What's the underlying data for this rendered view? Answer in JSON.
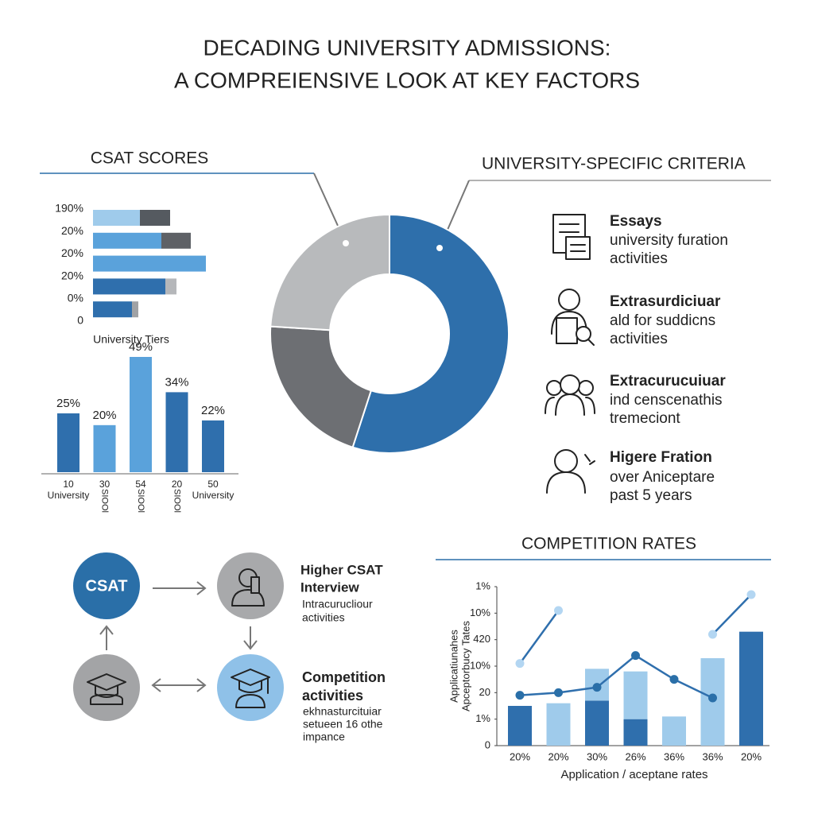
{
  "title": [
    "DECADING UNIVERSITY ADMISSIONS:",
    "A COMPREIENSIVE LOOK AT KEY FACTORS"
  ],
  "chart_data": [
    {
      "type": "hbar_stacked",
      "title": "CSAT SCORES",
      "categories": [
        "190%",
        "20%",
        "20%",
        "20%",
        "0%",
        "0"
      ],
      "xlabel": "University Tiers",
      "xlim": [
        0,
        150
      ],
      "series": [
        {
          "colors": [
            "#9fcbeb",
            "#5aa2db",
            "#5aa2db",
            "#2f6fad",
            "#2f6fad",
            null
          ],
          "values": [
            59,
            86,
            142,
            91,
            49,
            null
          ]
        },
        {
          "colors": [
            "#555a60",
            "#5e6166",
            "#5aa2db",
            "#b5b7ba",
            "#a0a2a5",
            null
          ],
          "values": [
            38,
            37,
            0,
            14,
            8,
            null
          ]
        }
      ]
    },
    {
      "type": "bar",
      "categories": [
        "10",
        "30",
        "54",
        "20",
        "50"
      ],
      "sublabels": [
        "University",
        null,
        null,
        null,
        "University"
      ],
      "rotated_labels": [
        null,
        "SIOOl",
        "SIOOl",
        "SIOOl",
        null
      ],
      "values": [
        25,
        20,
        49,
        34,
        22
      ],
      "value_labels": [
        "25%",
        "20%",
        "49%",
        "34%",
        "22%"
      ],
      "colors": [
        "#2f6fad",
        "#5aa2db",
        "#5aa2db",
        "#2f6fad",
        "#2f6fad"
      ]
    },
    {
      "type": "donut",
      "values": [
        55,
        21,
        24
      ],
      "colors": [
        "#2e6fab",
        "#6d6f73",
        "#b8babc"
      ]
    },
    {
      "type": "bar_line",
      "title": "COMPETITION RATES",
      "categories": [
        "20%",
        "20%",
        "30%",
        "26%",
        "36%",
        "36%",
        "20%"
      ],
      "xlabel": "Application / aceptane rates",
      "ylabel": [
        "Applicatiunahes",
        "Apceptorbucy Tates"
      ],
      "ylim": [
        0,
        6
      ],
      "yticks": [
        0,
        {
          "value": 1,
          "label": "1%"
        },
        {
          "value": 2,
          "label": "20"
        },
        {
          "value": 3,
          "label": "10%"
        },
        {
          "value": 4,
          "label": "420"
        },
        {
          "value": 5,
          "label": "10%"
        },
        {
          "value": 6,
          "label": "1%"
        }
      ],
      "series": [
        {
          "type": "bar",
          "color": "#2f6fad",
          "values": [
            1.5,
            null,
            1.7,
            1.0,
            null,
            null,
            4.3
          ]
        },
        {
          "type": "bar",
          "color": "#9fcbeb",
          "values": [
            null,
            1.6,
            1.2,
            1.8,
            1.1,
            3.3,
            null
          ]
        },
        {
          "type": "line",
          "color": "#2f6fad",
          "marker_color": "#2a6fa8",
          "values": [
            1.9,
            2.0,
            2.2,
            3.4,
            2.5,
            1.8,
            null
          ]
        },
        {
          "type": "line",
          "color": "#2f6fad",
          "marker_color": "#b3d6f2",
          "values": [
            3.1,
            5.1,
            null,
            null,
            null,
            4.2,
            5.7
          ]
        }
      ]
    }
  ],
  "criteria": {
    "title": "UNIVERSITY-SPECIFIC CRITERIA",
    "items": [
      {
        "title": "Essays",
        "lines": [
          "university furation",
          "activities"
        ]
      },
      {
        "title": "Extrasurdiciuar",
        "lines": [
          "ald for suddicns",
          "activities"
        ]
      },
      {
        "title": "Extracurucuiuar",
        "lines": [
          "ind censcenathis",
          "tremeciont"
        ]
      },
      {
        "title": "Higere Fration",
        "lines": [
          "over Aniceptare",
          "past 5 years"
        ]
      }
    ]
  },
  "flow": {
    "node": "CSAT",
    "notes": [
      {
        "heading": [
          "Higher CSAT",
          "Interview"
        ],
        "lines": [
          "Intracurucliour",
          "activities"
        ]
      },
      {
        "heading": [
          "Competition",
          "activities"
        ],
        "lines": [
          "ekhnasturcituiar",
          "setueen 16 othe",
          "impance"
        ]
      }
    ]
  }
}
